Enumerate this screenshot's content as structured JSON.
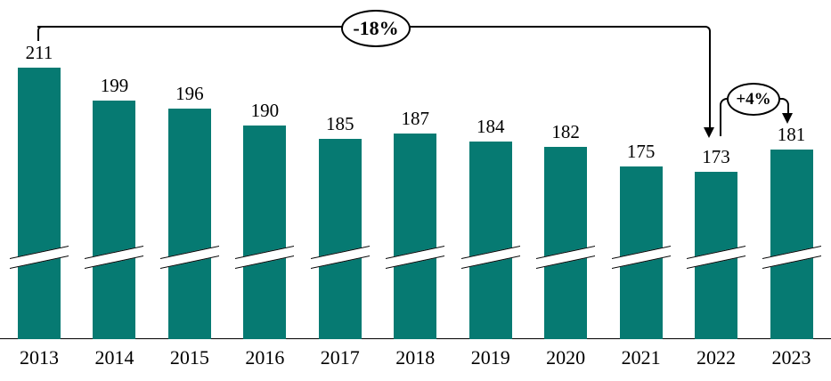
{
  "chart_data": {
    "type": "bar",
    "title": "",
    "xlabel": "",
    "ylabel": "",
    "categories": [
      "2013",
      "2014",
      "2015",
      "2016",
      "2017",
      "2018",
      "2019",
      "2020",
      "2021",
      "2022",
      "2023"
    ],
    "values": [
      211,
      199,
      196,
      190,
      185,
      187,
      184,
      182,
      175,
      173,
      181
    ],
    "bar_color": "#067a72",
    "grid": false,
    "legend": false,
    "axis_break_on_bars": true,
    "annotations": [
      {
        "label": "-18%",
        "from_category": "2013",
        "to_category": "2022",
        "style": "ellipse on bracket, down arrow onto 2022 bar"
      },
      {
        "label": "+4%",
        "from_category": "2022",
        "to_category": "2023",
        "style": "ellipse on bracket, down arrow onto 2023 bar"
      }
    ]
  }
}
